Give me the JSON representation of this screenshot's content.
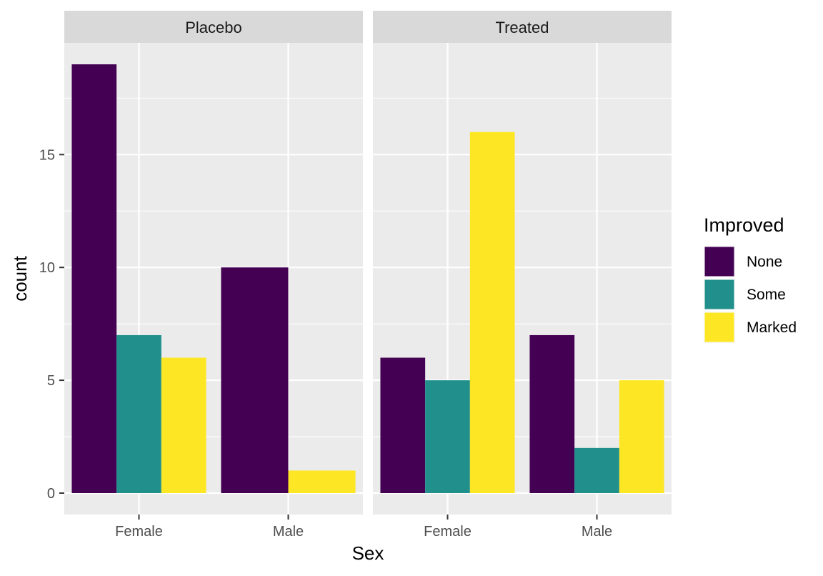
{
  "chart_data": {
    "type": "bar",
    "layout": "faceted-dodged",
    "xlabel": "Sex",
    "ylabel": "count",
    "ylim": [
      0,
      19.95
    ],
    "y_ticks": [
      0,
      5,
      10,
      15
    ],
    "categories": [
      "Female",
      "Male"
    ],
    "legend": {
      "title": "Improved",
      "position": "right"
    },
    "grid": true,
    "series": [
      {
        "name": "None",
        "color": "#440154"
      },
      {
        "name": "Some",
        "color": "#21908C"
      },
      {
        "name": "Marked",
        "color": "#FDE725"
      }
    ],
    "panels": [
      {
        "label": "Placebo",
        "groups": [
          {
            "category": "Female",
            "bars": [
              {
                "series": "None",
                "value": 19
              },
              {
                "series": "Some",
                "value": 7
              },
              {
                "series": "Marked",
                "value": 6
              }
            ]
          },
          {
            "category": "Male",
            "bars": [
              {
                "series": "None",
                "value": 10
              },
              {
                "series": "Marked",
                "value": 1
              }
            ]
          }
        ]
      },
      {
        "label": "Treated",
        "groups": [
          {
            "category": "Female",
            "bars": [
              {
                "series": "None",
                "value": 6
              },
              {
                "series": "Some",
                "value": 5
              },
              {
                "series": "Marked",
                "value": 16
              }
            ]
          },
          {
            "category": "Male",
            "bars": [
              {
                "series": "None",
                "value": 7
              },
              {
                "series": "Some",
                "value": 2
              },
              {
                "series": "Marked",
                "value": 5
              }
            ]
          }
        ]
      }
    ]
  }
}
